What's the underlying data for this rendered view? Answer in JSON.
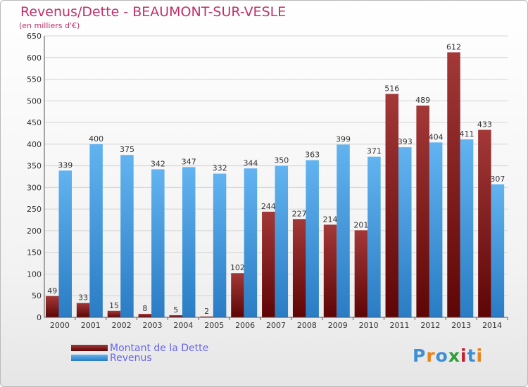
{
  "title": "Revenus/Dette - BEAUMONT-SUR-VESLE",
  "unit_label": "(en milliers d'€)",
  "logo_text": "Proxiti",
  "chart_data": {
    "type": "bar",
    "title": "Revenus/Dette - BEAUMONT-SUR-VESLE",
    "ylabel": "(en milliers d'€)",
    "xlabel": "",
    "ylim": [
      0,
      650
    ],
    "ytick_step": 50,
    "grid": "horizontal",
    "legend_position": "bottom-left",
    "categories": [
      "2000",
      "2001",
      "2002",
      "2003",
      "2004",
      "2005",
      "2006",
      "2007",
      "2008",
      "2009",
      "2010",
      "2011",
      "2012",
      "2013",
      "2014"
    ],
    "series": [
      {
        "name": "Montant de la Dette",
        "color": "#8b1a1a",
        "values": [
          49,
          33,
          15,
          8,
          5,
          2,
          102,
          244,
          227,
          214,
          201,
          516,
          489,
          612,
          433
        ]
      },
      {
        "name": "Revenus",
        "color": "#4a9fe3",
        "values": [
          339,
          400,
          375,
          342,
          347,
          332,
          344,
          350,
          363,
          399,
          371,
          393,
          404,
          411,
          307
        ]
      }
    ]
  }
}
